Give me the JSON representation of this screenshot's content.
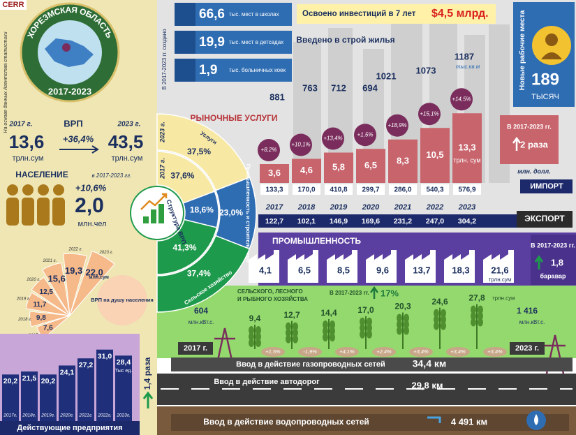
{
  "header": {
    "logo": "CERR",
    "region": "ХОРЕЗМСКАЯ ОБЛАСТЬ",
    "period": "2017-2023",
    "source": "На основе данных Агентства статистики"
  },
  "grp": {
    "year_start": "2017 г.",
    "title": "ВРП",
    "year_end": "2023 г.",
    "start": "13,6",
    "start_unit": "трлн.сум",
    "growth": "+36,4%",
    "end": "43,5",
    "end_unit": "трлн.сум"
  },
  "population": {
    "title": "НАСЕЛЕНИЕ",
    "period": "в 2017-2023 гг.",
    "growth": "+10,6%",
    "value": "2,0",
    "unit": "млн.чел"
  },
  "grp_per_capita": {
    "title": "ВРП на душу населения",
    "unit": "млн.сум",
    "items": [
      {
        "year": "2017 г.",
        "value": "7,6"
      },
      {
        "year": "2018 г.",
        "value": "9,8"
      },
      {
        "year": "2019 г.",
        "value": "11,7"
      },
      {
        "year": "2020 г.",
        "value": "12,5"
      },
      {
        "year": "2021 г.",
        "value": "15,6"
      },
      {
        "year": "2022 г.",
        "value": "19,3"
      },
      {
        "year": "2023 г.",
        "value": "22,0"
      }
    ]
  },
  "enterprises": {
    "title": "Действующие предприятия",
    "unit": "Тыс ед.",
    "growth": "1,4 раза",
    "items": [
      {
        "year": "2017г.",
        "value": "20,2"
      },
      {
        "year": "2018г.",
        "value": "21,5"
      },
      {
        "year": "2019г.",
        "value": "20,2"
      },
      {
        "year": "2020г.",
        "value": "24,1"
      },
      {
        "year": "2021г.",
        "value": "27,2"
      },
      {
        "year": "2022г.",
        "value": "31,0"
      },
      {
        "year": "2023г.",
        "value": "28,4"
      }
    ]
  },
  "created": {
    "title": "В 2017-2023 гг. создано",
    "items": [
      {
        "value": "66,6",
        "label": "тыс. мест в школах"
      },
      {
        "value": "19,9",
        "label": "тыс. мест в детсадах"
      },
      {
        "value": "1,9",
        "label": "тыс. больничных коек"
      }
    ]
  },
  "investment": {
    "label": "Освоено инвестиций в 7 лет",
    "value": "$4,5 млрд."
  },
  "housing": {
    "title": "Введено в строй жилья",
    "unit": "тыс.кв.м",
    "values": [
      "881",
      "763",
      "712",
      "694",
      "1021",
      "1073",
      "1187"
    ]
  },
  "jobs": {
    "title": "Новые рабочие места",
    "value": "189",
    "unit": "ТЫСЯЧ"
  },
  "years": [
    "2017",
    "2018",
    "2019",
    "2020",
    "2021",
    "2022",
    "2023"
  ],
  "market_services": {
    "title": "РЫНОЧНЫЕ УСЛУГИ",
    "unit": "трлн. сум",
    "values": [
      "3,6",
      "4,6",
      "5,8",
      "6,5",
      "8,3",
      "10,5",
      "13,3"
    ],
    "growth": [
      "+8,2%",
      "+10,1%",
      "+13,4%",
      "+1,5%",
      "+18,9%",
      "+15,1%",
      "+14,5%"
    ],
    "summary_period": "В 2017-2023 гг.",
    "summary_value": "2 раза"
  },
  "import": {
    "unit": "млн. долл.",
    "title": "ИМПОРТ",
    "values": [
      "133,3",
      "170,0",
      "410,8",
      "299,7",
      "286,0",
      "540,3",
      "576,9"
    ]
  },
  "export": {
    "title": "ЭКСПОРТ",
    "values": [
      "122,7",
      "102,1",
      "146,9",
      "169,6",
      "231,2",
      "247,0",
      "304,2"
    ]
  },
  "grp_structure": {
    "title": "Структура ВРП",
    "year_inner": "2017 г.",
    "year_outer": "2023 г.",
    "sectors": [
      {
        "name": "Услуги",
        "inner": "37,6%",
        "outer": "37,5%",
        "color": "#f7e8a4"
      },
      {
        "name": "Промышленность и строительство",
        "inner": "18,6%",
        "outer": "23,0%",
        "color": "#2f6db3"
      },
      {
        "name": "Сельское хозяйство",
        "inner": "41,3%",
        "outer": "37,4%",
        "color": "#1e9a4c"
      }
    ]
  },
  "industry": {
    "title": "ПРОМЫШЛЕННОСТЬ",
    "unit": "трлн.сум",
    "values": [
      "4,1",
      "6,5",
      "8,5",
      "9,6",
      "13,7",
      "18,3",
      "21,6"
    ],
    "summary_period": "В 2017-2023 гг.",
    "summary_value": "1,8",
    "summary_unit": "баравар"
  },
  "agriculture": {
    "title_lines": [
      "СЕЛЬСКОГО, ЛЕСНОГО",
      "И РЫБНОГО ХОЗЯЙСТВА"
    ],
    "summary_period": "В 2017-2023 гг.",
    "summary_value": "17%",
    "unit": "трлн.сум",
    "values": [
      "9,4",
      "12,7",
      "14,4",
      "17,0",
      "20,3",
      "24,6",
      "27,8"
    ],
    "growth": [
      "+1,5%",
      "-1,9%",
      "+4,1%",
      "+2,4%",
      "+3,4%",
      "+3,4%",
      "+3,4%"
    ]
  },
  "electricity": {
    "start": "604",
    "end": "1 416",
    "unit": "млн.кВт.с."
  },
  "infrastructure": {
    "year_start": "2017 г.",
    "year_end": "2023 г.",
    "gas_label": "Ввод в действие газопроводных сетей",
    "gas_value": "34,4 км",
    "road_label": "Ввод в действие  автодорог",
    "road_value": "29,8 км",
    "water_label": "Ввод в действие водопроводных сетей",
    "water_value": "4 491 км"
  }
}
